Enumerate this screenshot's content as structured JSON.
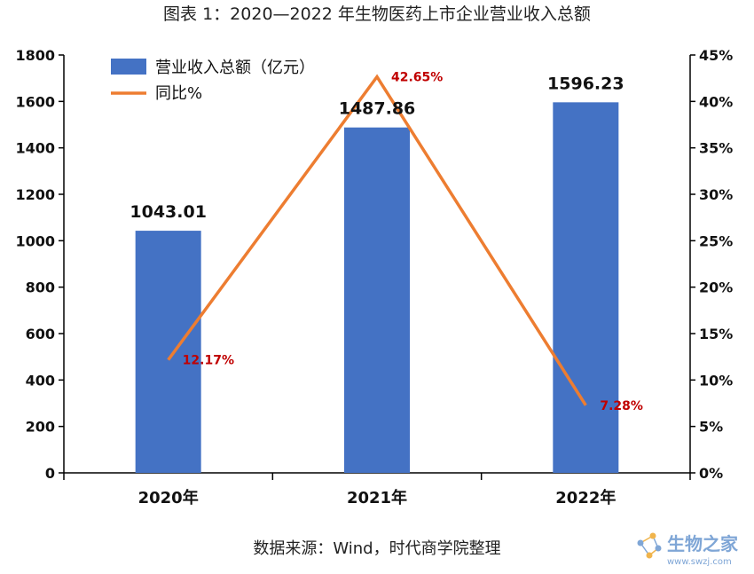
{
  "chart_data": {
    "type": "bar+line",
    "title": "图表 1：2020—2022 年生物医药上市企业营业收入总额",
    "categories": [
      "2020年",
      "2021年",
      "2022年"
    ],
    "bar_series": {
      "name": "营业收入总额（亿元）",
      "values": [
        1043.01,
        1487.86,
        1596.23
      ],
      "labels": [
        "1043.01",
        "1487.86",
        "1596.23"
      ],
      "color": "#4472c4"
    },
    "line_series": {
      "name": "同比%",
      "values": [
        12.17,
        42.65,
        7.28
      ],
      "labels": [
        "12.17%",
        "42.65%",
        "7.28%"
      ],
      "color": "#ed7d31"
    },
    "y_left": {
      "min": 0,
      "max": 1800,
      "step": 200,
      "ticks": [
        "0",
        "200",
        "400",
        "600",
        "800",
        "1000",
        "1200",
        "1400",
        "1600",
        "1800"
      ]
    },
    "y_right": {
      "min": 0,
      "max": 45,
      "step": 5,
      "ticks": [
        "0%",
        "5%",
        "10%",
        "15%",
        "20%",
        "25%",
        "30%",
        "35%",
        "40%",
        "45%"
      ]
    },
    "legend_position": "top-left",
    "grid": false
  },
  "source_note": "数据来源：Wind，时代商学院整理",
  "watermark": {
    "text": "生物之家",
    "url": "www.swzj.com",
    "icon": "molecule-icon"
  }
}
